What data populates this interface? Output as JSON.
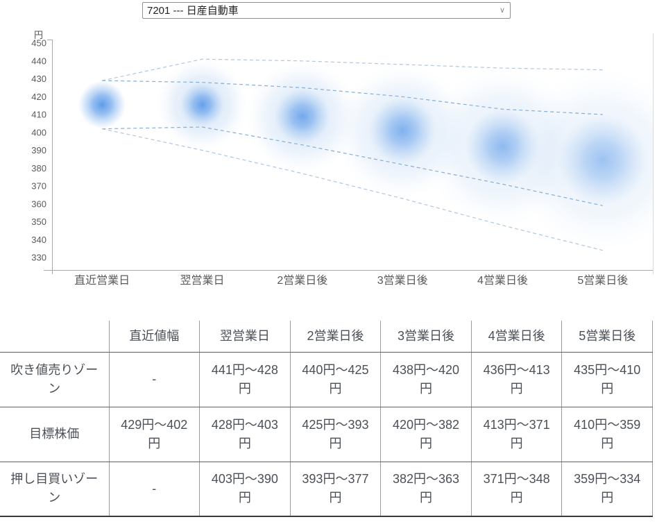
{
  "stock_selector": {
    "value": "7201 --- 日産自動車"
  },
  "icons": {
    "chevron_down": "∨"
  },
  "chart_data": {
    "type": "scatter",
    "title": "",
    "unit_label": "円",
    "categories": [
      "直近営業日",
      "翌営業日",
      "2営業日後",
      "3営業日後",
      "4営業日後",
      "5営業日後"
    ],
    "ylim": [
      330,
      450
    ],
    "ytick_step": 10,
    "grid": false,
    "legend": "none",
    "series": [
      {
        "name": "sell_zone_high",
        "values": [
          null,
          441,
          440,
          438,
          436,
          435
        ]
      },
      {
        "name": "target_high",
        "values": [
          429,
          428,
          425,
          420,
          413,
          410
        ]
      },
      {
        "name": "target_low",
        "values": [
          402,
          403,
          393,
          382,
          371,
          359
        ]
      },
      {
        "name": "buy_zone_low",
        "values": [
          null,
          390,
          377,
          363,
          348,
          334
        ]
      }
    ],
    "colors": {
      "ball_core": "#4f93e8",
      "ball_halo": "#c3d9f4",
      "dash_inner": "#84add8",
      "dash_outer": "#aec6de",
      "axis": "#a8a8a8",
      "right_border": "#d9d9d9",
      "tick_text": "#595959"
    }
  },
  "table": {
    "corner": "",
    "columns": [
      "直近値幅",
      "翌営業日",
      "2営業日後",
      "3営業日後",
      "4営業日後",
      "5営業日後"
    ],
    "rows": [
      {
        "label": "吹き値売りゾーン",
        "cells": [
          "-",
          "441円～428円",
          "440円～425円",
          "438円～420円",
          "436円～413円",
          "435円～410円"
        ]
      },
      {
        "label": "目標株価",
        "cells": [
          "429円～402円",
          "428円～403円",
          "425円～393円",
          "420円～382円",
          "413円～371円",
          "410円～359円"
        ]
      },
      {
        "label": "押し目買いゾーン",
        "cells": [
          "-",
          "403円～390円",
          "393円～377円",
          "382円～363円",
          "371円～348円",
          "359円～334円"
        ]
      }
    ]
  }
}
